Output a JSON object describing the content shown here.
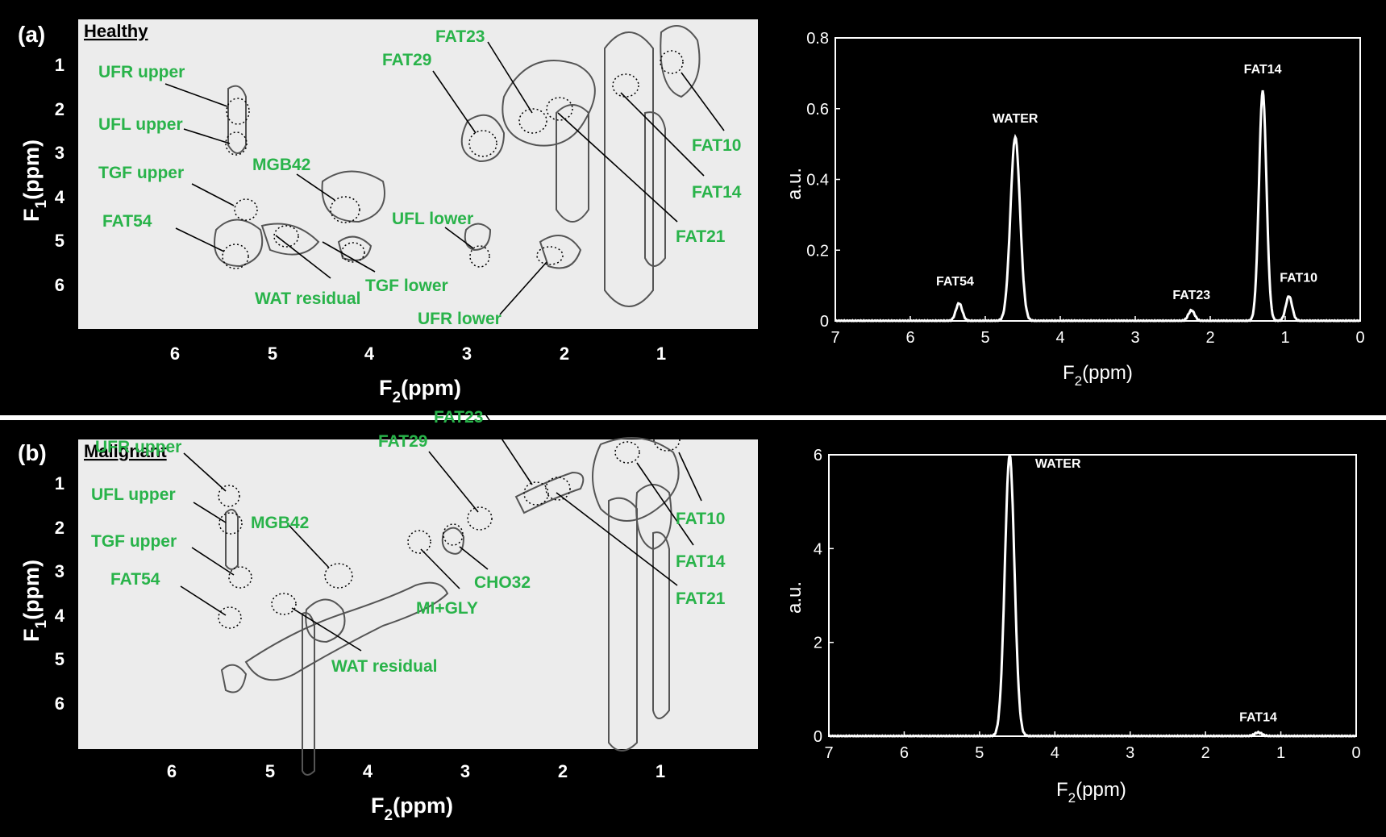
{
  "panels": [
    {
      "label": "(a)",
      "title": "Healthy",
      "map2d": {
        "f2_ticks": [
          "6",
          "5",
          "4",
          "3",
          "2",
          "1"
        ],
        "f1_ticks": [
          "1",
          "2",
          "3",
          "4",
          "5",
          "6"
        ],
        "xlabel_main": "F",
        "xlabel_sub": "2",
        "xlabel_unit": "(ppm)",
        "ylabel_main": "F",
        "ylabel_sub": "1",
        "ylabel_unit": "(ppm)",
        "annotations": [
          "UFR upper",
          "UFL upper",
          "TGF upper",
          "FAT54",
          "MGB42",
          "WAT residual",
          "TGF lower",
          "FAT29",
          "FAT23",
          "UFL lower",
          "UFR lower",
          "FAT10",
          "FAT14",
          "FAT21"
        ]
      },
      "spectrum": {
        "xlabel_main": "F",
        "xlabel_sub": "2",
        "xlabel_unit": "(ppm)",
        "ylabel": "a.u.",
        "x_ticks": [
          "7",
          "6",
          "5",
          "4",
          "3",
          "2",
          "1",
          "0"
        ],
        "y_ticks": [
          "0",
          "0.2",
          "0.4",
          "0.6",
          "0.8"
        ],
        "peak_labels": [
          "FAT54",
          "WATER",
          "FAT23",
          "FAT14",
          "FAT10"
        ]
      }
    },
    {
      "label": "(b)",
      "title": "Malignant",
      "map2d": {
        "f2_ticks": [
          "6",
          "5",
          "4",
          "3",
          "2",
          "1"
        ],
        "f1_ticks": [
          "1",
          "2",
          "3",
          "4",
          "5",
          "6"
        ],
        "xlabel_main": "F",
        "xlabel_sub": "2",
        "xlabel_unit": "(ppm)",
        "ylabel_main": "F",
        "ylabel_sub": "1",
        "ylabel_unit": "(ppm)",
        "annotations": [
          "UFR upper",
          "UFL upper",
          "TGF upper",
          "FAT54",
          "MGB42",
          "WAT residual",
          "FAT29",
          "FAT23",
          "MI+GLY",
          "CHO32",
          "FAT10",
          "FAT14",
          "FAT21"
        ]
      },
      "spectrum": {
        "xlabel_main": "F",
        "xlabel_sub": "2",
        "xlabel_unit": "(ppm)",
        "ylabel": "a.u.",
        "x_ticks": [
          "7",
          "6",
          "5",
          "4",
          "3",
          "2",
          "1",
          "0"
        ],
        "y_ticks": [
          "0",
          "2",
          "4",
          "6"
        ],
        "peak_labels": [
          "WATER",
          "FAT14"
        ]
      }
    }
  ],
  "chart_data": [
    {
      "type": "line",
      "panel": "(a) Healthy",
      "xlabel": "F2(ppm)",
      "ylabel": "a.u.",
      "xlim": [
        7,
        0
      ],
      "ylim": [
        0,
        0.8
      ],
      "peaks": [
        {
          "name": "FAT54",
          "x": 5.35,
          "y": 0.05
        },
        {
          "name": "WATER",
          "x": 4.6,
          "y": 0.52
        },
        {
          "name": "FAT23",
          "x": 2.25,
          "y": 0.03
        },
        {
          "name": "FAT14",
          "x": 1.3,
          "y": 0.65
        },
        {
          "name": "FAT10",
          "x": 0.95,
          "y": 0.07
        }
      ]
    },
    {
      "type": "line",
      "panel": "(b) Malignant",
      "xlabel": "F2(ppm)",
      "ylabel": "a.u.",
      "xlim": [
        7,
        0
      ],
      "ylim": [
        0,
        6
      ],
      "peaks": [
        {
          "name": "WATER",
          "x": 4.6,
          "y": 6.0
        },
        {
          "name": "FAT14",
          "x": 1.3,
          "y": 0.08
        }
      ]
    }
  ]
}
